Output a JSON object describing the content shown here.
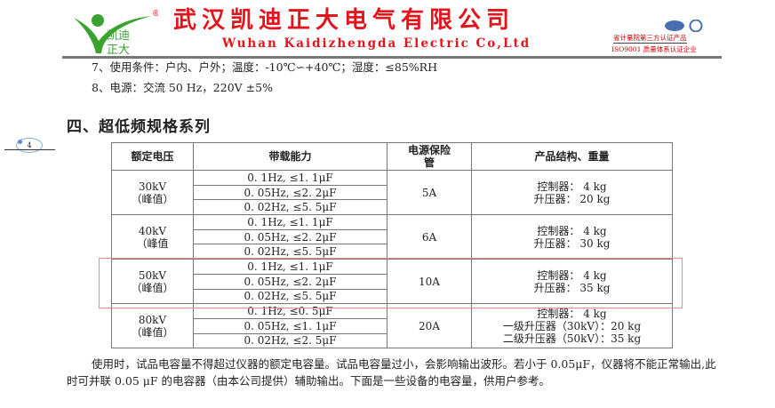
{
  "header": {
    "logo_text": "凯迪正大",
    "cn_name": "武汉凯迪正大电气有限公司",
    "en_name": "Wuhan Kaidizhengda Electric Co,Ltd",
    "cert1": "省计量院第三方认证产品",
    "cert2": "ISO9001 质量体系认证企业",
    "brand_color": "#e3141b",
    "logo_color": "#3aa22f"
  },
  "lines": [
    "7、使用条件：户内、户外；温度：-10℃∽+40℃；湿度：≤85%RH",
    "8、电源：交流 50 Hz，220V ±5%"
  ],
  "section_title": "四、超低频规格系列",
  "page_number": "4",
  "table": {
    "headers": [
      "额定电压",
      "带载能力",
      "电源保险管",
      "产品结构、重量"
    ],
    "groups": [
      {
        "voltage": "30kV",
        "peak": "（峰值）",
        "caps": [
          "0. 1Hz, ≤1. 1μF",
          "0. 05Hz, ≤2. 2μF",
          "0. 02Hz, ≤5. 5μF"
        ],
        "fuse": "5A",
        "weights": [
          "控制器： 4 kg",
          "升压器： 20 kg"
        ]
      },
      {
        "voltage": "40kV",
        "peak": "（峰值",
        "caps": [
          "0. 1Hz, ≤1. 1μF",
          "0. 05Hz, ≤2. 2μF",
          "0. 02Hz, ≤5. 5μF"
        ],
        "fuse": "6A",
        "weights": [
          "控制器： 4 kg",
          "升压器： 30 kg"
        ]
      },
      {
        "voltage": "50kV",
        "peak": "（峰值）",
        "caps": [
          "0. 1Hz, ≤1. 1μF",
          "0. 05Hz, ≤2. 2μF",
          "0. 02Hz, ≤5. 5μF"
        ],
        "fuse": "10A",
        "weights": [
          "控制器： 4 kg",
          "升压器： 35 kg"
        ]
      },
      {
        "voltage": "80kV",
        "peak": "（峰值）",
        "caps": [
          "0. 1Hz, ≤0. 5μF",
          "0. 05Hz, ≤1. 1μF",
          "0. 02Hz, ≤2. 5μF"
        ],
        "fuse": "20A",
        "weights": [
          "控制器： 4 kg",
          "一级升压器（30kV）：20 kg",
          "二级升压器（50kV）：35 kg"
        ]
      }
    ]
  },
  "paragraph": "使用时，试品电容量不得超过仪器的额定电容量。试品电容量过小，会影响输出波形。若小于 0.05μF，仪器将不能正常输出,此时可并联 0.05 μF 的电容器（由本公司提供）辅助输出。下面是一些设备的电容量，供用户参考。"
}
